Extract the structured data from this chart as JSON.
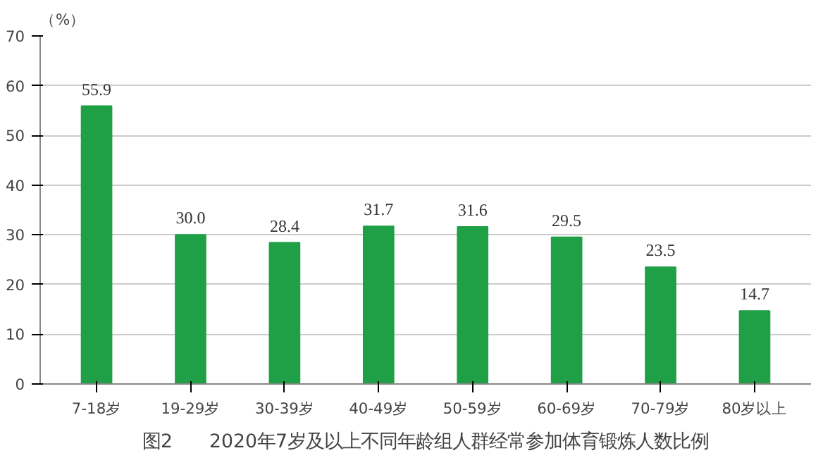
{
  "chart_data": {
    "type": "bar",
    "title": "图2　　2020年7岁及以上不同年龄组人群经常参加体育锻炼人数比例",
    "ylabel": "（%）",
    "categories": [
      "7-18岁",
      "19-29岁",
      "30-39岁",
      "40-49岁",
      "50-59岁",
      "60-69岁",
      "70-79岁",
      "80岁以上"
    ],
    "values": [
      55.9,
      30.0,
      28.4,
      31.7,
      31.6,
      29.5,
      23.5,
      14.7
    ],
    "color": "#1fa046",
    "ylim": [
      0,
      70
    ],
    "yticks": [
      0,
      10,
      20,
      30,
      40,
      50,
      60,
      70
    ],
    "value_labels": [
      "55.9",
      "30.0",
      "28.4",
      "31.7",
      "31.6",
      "29.5",
      "23.5",
      "14.7"
    ],
    "grid": "y"
  }
}
